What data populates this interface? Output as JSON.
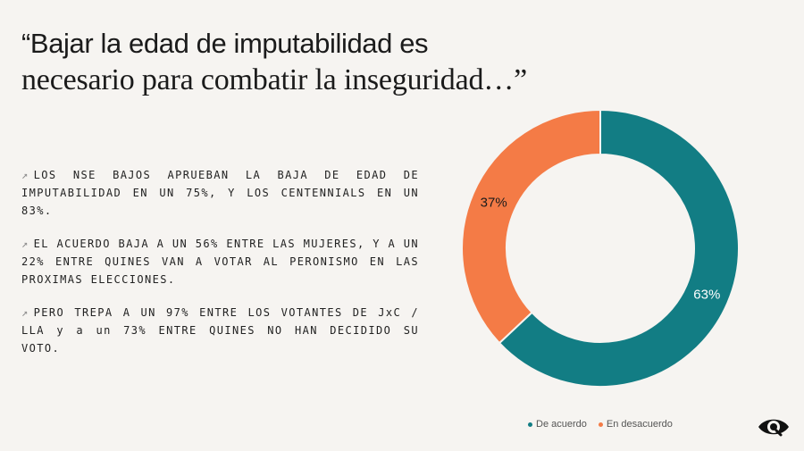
{
  "title": {
    "line1": "“Bajar la edad de imputabilidad es",
    "line2": "necesario para combatir la inseguridad…”"
  },
  "bullet_symbol": "↗",
  "bullets": [
    "LOS NSE BAJOS APRUEBAN LA BAJA DE EDAD DE IMPUTABILIDAD EN UN 75%, Y LOS CENTENNIALS EN UN 83%.",
    "EL ACUERDO BAJA A UN 56% ENTRE LAS MUJERES, Y A UN 22% ENTRE QUINES VAN A VOTAR AL PERONISMO EN LAS PROXIMAS ELECCIONES.",
    "PERO TREPA A UN 97% ENTRE LOS VOTANTES DE JxC / LLA y a un 73% ENTRE QUINES NO HAN DECIDIDO SU VOTO."
  ],
  "chart_data": {
    "type": "pie",
    "variant": "donut",
    "legend_position": "bottom",
    "series": [
      {
        "name": "De acuerdo",
        "value": 63,
        "label": "63%",
        "color": "#127d84"
      },
      {
        "name": "En desacuerdo",
        "value": 37,
        "label": "37%",
        "color": "#f47b46"
      }
    ]
  },
  "logo": {
    "icon": "eye-icon",
    "color": "#111111"
  }
}
